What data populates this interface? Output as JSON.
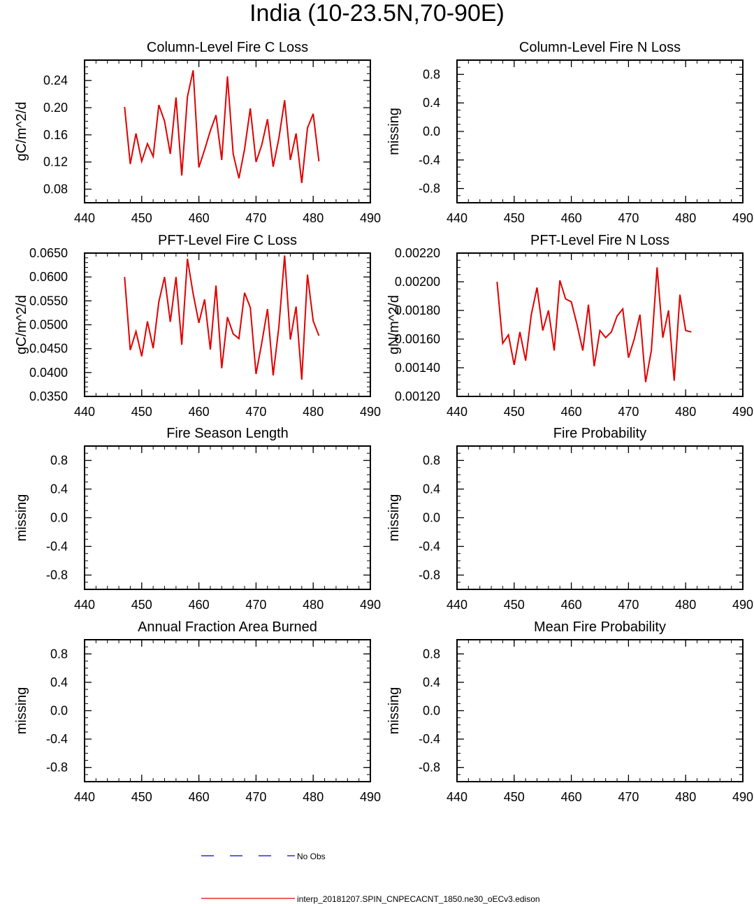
{
  "title": "India (10-23.5N,70-90E)",
  "legend": [
    {
      "label": "No Obs",
      "color": "#0000cc",
      "style": "dashed"
    },
    {
      "label": "interp_20181207.SPIN_CNPECACNT_1850.ne30_oECv3.edison",
      "color": "#e00000",
      "style": "solid"
    }
  ],
  "chart_data": [
    {
      "type": "line",
      "title": "Column-Level Fire C Loss",
      "ylabel": "gC/m^2/d",
      "xlim": [
        440,
        490
      ],
      "ylim": [
        0.06,
        0.27
      ],
      "xticks": [
        440,
        450,
        460,
        470,
        480,
        490
      ],
      "yticks": [
        0.08,
        0.12,
        0.16,
        0.2,
        0.24
      ],
      "ytick_labels": [
        "0.08",
        "0.12",
        "0.16",
        "0.20",
        "0.24"
      ],
      "yminor": 0.01,
      "x": [
        447,
        448,
        449,
        450,
        451,
        452,
        453,
        454,
        455,
        456,
        457,
        458,
        459,
        460,
        461,
        462,
        463,
        464,
        465,
        466,
        467,
        468,
        469,
        470,
        471,
        472,
        473,
        474,
        475,
        476,
        477,
        478,
        479,
        480,
        481
      ],
      "series": [
        {
          "color": "#e00000",
          "values": [
            0.201,
            0.117,
            0.162,
            0.121,
            0.147,
            0.128,
            0.204,
            0.18,
            0.132,
            0.215,
            0.1,
            0.216,
            0.255,
            0.112,
            0.138,
            0.166,
            0.189,
            0.123,
            0.246,
            0.132,
            0.096,
            0.139,
            0.199,
            0.12,
            0.145,
            0.183,
            0.113,
            0.155,
            0.211,
            0.123,
            0.162,
            0.089,
            0.17,
            0.191,
            0.121
          ]
        }
      ]
    },
    {
      "type": "line",
      "title": "Column-Level Fire N Loss",
      "ylabel": "missing",
      "xlim": [
        440,
        490
      ],
      "ylim": [
        -1,
        1
      ],
      "xticks": [
        440,
        450,
        460,
        470,
        480,
        490
      ],
      "yticks": [
        -0.8,
        -0.4,
        0.0,
        0.4,
        0.8
      ],
      "ytick_labels": [
        "-0.8",
        "-0.4",
        "0.0",
        "0.4",
        "0.8"
      ],
      "yminor": 0.1,
      "x": [],
      "series": []
    },
    {
      "type": "line",
      "title": "PFT-Level Fire C Loss",
      "ylabel": "gC/m^2/d",
      "xlim": [
        440,
        490
      ],
      "ylim": [
        0.035,
        0.065
      ],
      "xticks": [
        440,
        450,
        460,
        470,
        480,
        490
      ],
      "yticks": [
        0.035,
        0.04,
        0.045,
        0.05,
        0.055,
        0.06,
        0.065
      ],
      "ytick_labels": [
        "0.0350",
        "0.0400",
        "0.0450",
        "0.0500",
        "0.0550",
        "0.0600",
        "0.0650"
      ],
      "yminor": 0.001,
      "x": [
        447,
        448,
        449,
        450,
        451,
        452,
        453,
        454,
        455,
        456,
        457,
        458,
        459,
        460,
        461,
        462,
        463,
        464,
        465,
        466,
        467,
        468,
        469,
        470,
        471,
        472,
        473,
        474,
        475,
        476,
        477,
        478,
        479,
        480,
        481
      ],
      "series": [
        {
          "color": "#e00000",
          "values": [
            0.06,
            0.0447,
            0.0486,
            0.0434,
            0.0507,
            0.0451,
            0.0548,
            0.06,
            0.0506,
            0.06,
            0.0458,
            0.0638,
            0.0565,
            0.0504,
            0.0553,
            0.0448,
            0.0582,
            0.0409,
            0.0516,
            0.0481,
            0.0471,
            0.0567,
            0.0536,
            0.0397,
            0.0462,
            0.0533,
            0.0394,
            0.0496,
            0.0645,
            0.0469,
            0.0538,
            0.0385,
            0.0605,
            0.0508,
            0.0477
          ]
        }
      ]
    },
    {
      "type": "line",
      "title": "PFT-Level Fire N Loss",
      "ylabel": "gN/m^2/d",
      "xlim": [
        440,
        490
      ],
      "ylim": [
        0.0012,
        0.0022
      ],
      "xticks": [
        440,
        450,
        460,
        470,
        480,
        490
      ],
      "yticks": [
        0.0012,
        0.0014,
        0.0016,
        0.0018,
        0.002,
        0.0022
      ],
      "ytick_labels": [
        "0.00120",
        "0.00140",
        "0.00160",
        "0.00180",
        "0.00200",
        "0.00220"
      ],
      "yminor": 5e-05,
      "x": [
        447,
        448,
        449,
        450,
        451,
        452,
        453,
        454,
        455,
        456,
        457,
        458,
        459,
        460,
        461,
        462,
        463,
        464,
        465,
        466,
        467,
        468,
        469,
        470,
        471,
        472,
        473,
        474,
        475,
        476,
        477,
        478,
        479,
        480,
        481
      ],
      "series": [
        {
          "color": "#e00000",
          "values": [
            0.002,
            0.00157,
            0.00163,
            0.00142,
            0.00165,
            0.00145,
            0.00177,
            0.00196,
            0.00166,
            0.0018,
            0.00152,
            0.00201,
            0.00188,
            0.00186,
            0.0017,
            0.00152,
            0.00184,
            0.00141,
            0.00166,
            0.00161,
            0.00165,
            0.00176,
            0.00181,
            0.00147,
            0.0016,
            0.00177,
            0.0013,
            0.00152,
            0.0021,
            0.00161,
            0.0018,
            0.00131,
            0.00191,
            0.00166,
            0.00165
          ]
        }
      ]
    },
    {
      "type": "line",
      "title": "Fire Season Length",
      "ylabel": "missing",
      "xlim": [
        440,
        490
      ],
      "ylim": [
        -1,
        1
      ],
      "xticks": [
        440,
        450,
        460,
        470,
        480,
        490
      ],
      "yticks": [
        -0.8,
        -0.4,
        0.0,
        0.4,
        0.8
      ],
      "ytick_labels": [
        "-0.8",
        "-0.4",
        "0.0",
        "0.4",
        "0.8"
      ],
      "yminor": 0.1,
      "x": [],
      "series": []
    },
    {
      "type": "line",
      "title": "Fire Probability",
      "ylabel": "missing",
      "xlim": [
        440,
        490
      ],
      "ylim": [
        -1,
        1
      ],
      "xticks": [
        440,
        450,
        460,
        470,
        480,
        490
      ],
      "yticks": [
        -0.8,
        -0.4,
        0.0,
        0.4,
        0.8
      ],
      "ytick_labels": [
        "-0.8",
        "-0.4",
        "0.0",
        "0.4",
        "0.8"
      ],
      "yminor": 0.1,
      "x": [],
      "series": []
    },
    {
      "type": "line",
      "title": "Annual Fraction Area Burned",
      "ylabel": "missing",
      "xlim": [
        440,
        490
      ],
      "ylim": [
        -1,
        1
      ],
      "xticks": [
        440,
        450,
        460,
        470,
        480,
        490
      ],
      "yticks": [
        -0.8,
        -0.4,
        0.0,
        0.4,
        0.8
      ],
      "ytick_labels": [
        "-0.8",
        "-0.4",
        "0.0",
        "0.4",
        "0.8"
      ],
      "yminor": 0.1,
      "x": [],
      "series": []
    },
    {
      "type": "line",
      "title": "Mean Fire Probability",
      "ylabel": "missing",
      "xlim": [
        440,
        490
      ],
      "ylim": [
        -1,
        1
      ],
      "xticks": [
        440,
        450,
        460,
        470,
        480,
        490
      ],
      "yticks": [
        -0.8,
        -0.4,
        0.0,
        0.4,
        0.8
      ],
      "ytick_labels": [
        "-0.8",
        "-0.4",
        "0.0",
        "0.4",
        "0.8"
      ],
      "yminor": 0.1,
      "x": [],
      "series": []
    }
  ]
}
